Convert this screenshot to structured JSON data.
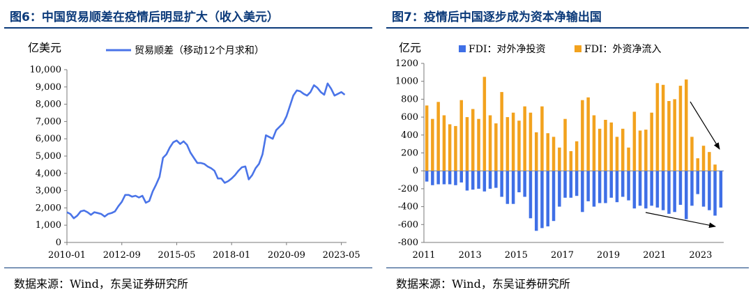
{
  "figures": {
    "left": {
      "title": "图6：中国贸易顺差在疫情后明显扩大（收入美元）",
      "source": "数据来源：Wind，东吴证券研究所"
    },
    "right": {
      "title": "图7：疫情后中国逐步成为资本净输出国",
      "source": "数据来源：Wind，东吴证券研究所"
    }
  },
  "chart_data": [
    {
      "type": "line",
      "unit_label": "亿美元",
      "ylim": [
        0,
        10000
      ],
      "yticks": [
        0,
        1000,
        2000,
        3000,
        4000,
        5000,
        6000,
        7000,
        8000,
        9000,
        10000
      ],
      "ytick_labels": [
        "0",
        "1,000",
        "2,000",
        "3,000",
        "4,000",
        "5,000",
        "6,000",
        "7,000",
        "8,000",
        "9,000",
        "10,000"
      ],
      "xlim": [
        "2010-01",
        "2023-08"
      ],
      "xtick_labels": [
        "2010-01",
        "2012-09",
        "2015-05",
        "2018-01",
        "2020-09",
        "2023-05"
      ],
      "legend_position": "top-center",
      "color": "#4a74e8",
      "series": [
        {
          "name": "贸易顺差（移动12个月求和）",
          "x": [
            "2010-01",
            "2010-03",
            "2010-05",
            "2010-07",
            "2010-09",
            "2010-11",
            "2011-01",
            "2011-03",
            "2011-05",
            "2011-07",
            "2011-09",
            "2011-11",
            "2012-01",
            "2012-03",
            "2012-05",
            "2012-07",
            "2012-09",
            "2012-11",
            "2013-01",
            "2013-03",
            "2013-05",
            "2013-07",
            "2013-09",
            "2013-11",
            "2014-01",
            "2014-03",
            "2014-05",
            "2014-07",
            "2014-09",
            "2014-11",
            "2015-01",
            "2015-03",
            "2015-05",
            "2015-07",
            "2015-09",
            "2015-11",
            "2016-01",
            "2016-03",
            "2016-05",
            "2016-07",
            "2016-09",
            "2016-11",
            "2017-01",
            "2017-03",
            "2017-05",
            "2017-07",
            "2017-09",
            "2017-11",
            "2018-01",
            "2018-03",
            "2018-05",
            "2018-07",
            "2018-09",
            "2018-11",
            "2019-01",
            "2019-03",
            "2019-05",
            "2019-07",
            "2019-09",
            "2019-11",
            "2020-01",
            "2020-03",
            "2020-05",
            "2020-07",
            "2020-09",
            "2020-11",
            "2021-01",
            "2021-03",
            "2021-05",
            "2021-07",
            "2021-09",
            "2021-11",
            "2022-01",
            "2022-03",
            "2022-05",
            "2022-07",
            "2022-09",
            "2022-11",
            "2023-01",
            "2023-03",
            "2023-05",
            "2023-07"
          ],
          "values": [
            1750,
            1650,
            1400,
            1550,
            1800,
            1850,
            1750,
            1600,
            1750,
            1700,
            1650,
            1500,
            1650,
            1700,
            1800,
            2100,
            2350,
            2750,
            2750,
            2650,
            2700,
            2600,
            2700,
            2300,
            2400,
            2950,
            3350,
            3800,
            4900,
            5100,
            5500,
            5800,
            5900,
            5700,
            5850,
            5650,
            5200,
            4900,
            4600,
            4600,
            4550,
            4400,
            4300,
            4150,
            3700,
            3700,
            3450,
            3550,
            3700,
            3900,
            4150,
            4350,
            4400,
            3650,
            3900,
            4300,
            4550,
            5100,
            6200,
            6100,
            6000,
            6500,
            6700,
            6900,
            7300,
            7900,
            8500,
            8800,
            8750,
            8600,
            8500,
            8700,
            9100,
            8950,
            8700,
            8550,
            9200,
            8900,
            8500,
            8600,
            8700,
            8550
          ]
        }
      ]
    },
    {
      "type": "bar",
      "unit_label": "亿元",
      "ylim": [
        -800,
        1200
      ],
      "yticks": [
        -800,
        -600,
        -400,
        -200,
        0,
        200,
        400,
        600,
        800,
        1000,
        1200
      ],
      "ytick_labels": [
        "-800",
        "-600",
        "-400",
        "-200",
        "0",
        "200",
        "400",
        "600",
        "800",
        "1000",
        "1200"
      ],
      "xtick_labels": [
        "2011",
        "2013",
        "2015",
        "2017",
        "2019",
        "2021",
        "2023"
      ],
      "legend_position": "top",
      "series": [
        {
          "name": "FDI：对外净投资",
          "color": "#3f6fe6",
          "values": [
            -120,
            -160,
            -150,
            -150,
            -150,
            -160,
            -130,
            -220,
            -210,
            -200,
            -230,
            -200,
            -190,
            -290,
            -370,
            -370,
            -240,
            -290,
            -530,
            -670,
            -640,
            -620,
            -560,
            -400,
            -300,
            -300,
            -280,
            -460,
            -340,
            -400,
            -360,
            -360,
            -300,
            -350,
            -290,
            -330,
            -420,
            -390,
            -420,
            -390,
            -410,
            -440,
            -480,
            -460,
            -380,
            -540,
            -390,
            -260,
            -400,
            -440,
            -500,
            -410
          ]
        },
        {
          "name": "FDI：外资净流入",
          "color": "#f2a21e",
          "values": [
            730,
            580,
            770,
            620,
            520,
            500,
            790,
            600,
            690,
            580,
            1050,
            620,
            530,
            880,
            600,
            650,
            560,
            720,
            650,
            430,
            720,
            420,
            380,
            260,
            580,
            220,
            330,
            790,
            820,
            620,
            470,
            570,
            540,
            380,
            470,
            260,
            660,
            450,
            460,
            650,
            980,
            960,
            780,
            800,
            950,
            1020,
            380,
            140,
            280,
            210,
            70,
            0
          ]
        }
      ]
    }
  ]
}
